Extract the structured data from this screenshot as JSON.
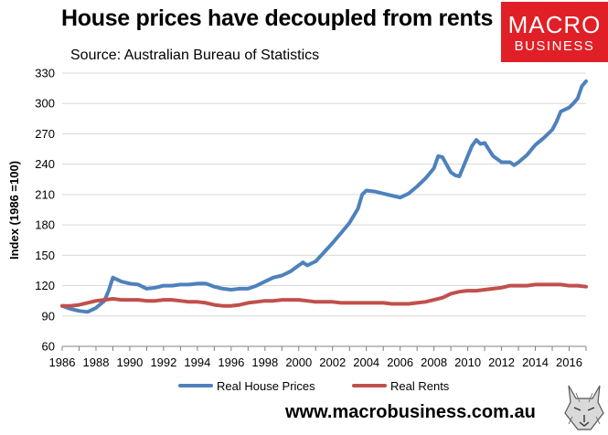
{
  "header": {
    "title": "House prices have decoupled from rents",
    "source": "Source: Australian Bureau of Statistics"
  },
  "logo": {
    "line1": "MACRO",
    "line2": "BUSINESS"
  },
  "footer": {
    "url": "www.macrobusiness.com.au"
  },
  "colors": {
    "house": "#4e81bd",
    "rents": "#c0504d",
    "brand": "#e11f26"
  },
  "chart_data": {
    "type": "line",
    "ylabel": "Index (1986 =100)",
    "xlim": [
      1986,
      2017
    ],
    "ylim": [
      60,
      330
    ],
    "yticks": [
      60,
      90,
      120,
      150,
      180,
      210,
      240,
      270,
      300,
      330
    ],
    "xticks": [
      1986,
      1988,
      1990,
      1992,
      1994,
      1996,
      1998,
      2000,
      2002,
      2004,
      2006,
      2008,
      2010,
      2012,
      2014,
      2016
    ],
    "grid": "horizontal",
    "legend": "bottom",
    "series": [
      {
        "name": "Real House Prices",
        "color": "#4e81bd",
        "x": [
          1986.0,
          1986.5,
          1987.0,
          1987.5,
          1988.0,
          1988.5,
          1988.75,
          1989.0,
          1989.5,
          1990.0,
          1990.5,
          1991.0,
          1991.5,
          1992.0,
          1992.5,
          1993.0,
          1993.5,
          1994.0,
          1994.5,
          1995.0,
          1995.5,
          1996.0,
          1996.5,
          1997.0,
          1997.5,
          1998.0,
          1998.5,
          1999.0,
          1999.5,
          2000.0,
          2000.25,
          2000.5,
          2001.0,
          2001.5,
          2002.0,
          2002.5,
          2003.0,
          2003.5,
          2003.75,
          2004.0,
          2004.5,
          2005.0,
          2005.5,
          2006.0,
          2006.5,
          2007.0,
          2007.5,
          2008.0,
          2008.25,
          2008.5,
          2009.0,
          2009.25,
          2009.5,
          2010.0,
          2010.25,
          2010.5,
          2010.75,
          2011.0,
          2011.5,
          2012.0,
          2012.5,
          2012.75,
          2013.0,
          2013.5,
          2014.0,
          2014.5,
          2015.0,
          2015.25,
          2015.5,
          2016.0,
          2016.25,
          2016.5,
          2016.75,
          2017.0
        ],
        "y": [
          100,
          97,
          95,
          94,
          98,
          105,
          115,
          128,
          124,
          122,
          121,
          117,
          118,
          120,
          120,
          121,
          121,
          122,
          122,
          119,
          117,
          116,
          117,
          117,
          120,
          124,
          128,
          130,
          134,
          140,
          143,
          140,
          144,
          153,
          162,
          172,
          182,
          196,
          210,
          214,
          213,
          211,
          209,
          207,
          211,
          218,
          226,
          236,
          248,
          247,
          232,
          229,
          228,
          248,
          258,
          264,
          260,
          261,
          248,
          242,
          242,
          239,
          242,
          249,
          259,
          266,
          274,
          282,
          292,
          296,
          300,
          305,
          317,
          322
        ]
      },
      {
        "name": "Real Rents",
        "color": "#c0504d",
        "x": [
          1986.0,
          1986.5,
          1987.0,
          1987.5,
          1988.0,
          1988.5,
          1989.0,
          1989.5,
          1990.0,
          1990.5,
          1991.0,
          1991.5,
          1992.0,
          1992.5,
          1993.0,
          1993.5,
          1994.0,
          1994.5,
          1995.0,
          1995.5,
          1996.0,
          1996.5,
          1997.0,
          1997.5,
          1998.0,
          1998.5,
          1999.0,
          1999.5,
          2000.0,
          2000.5,
          2001.0,
          2001.5,
          2002.0,
          2002.5,
          2003.0,
          2003.5,
          2004.0,
          2004.5,
          2005.0,
          2005.5,
          2006.0,
          2006.5,
          2007.0,
          2007.5,
          2008.0,
          2008.5,
          2009.0,
          2009.5,
          2010.0,
          2010.5,
          2011.0,
          2011.5,
          2012.0,
          2012.5,
          2013.0,
          2013.5,
          2014.0,
          2014.5,
          2015.0,
          2015.5,
          2016.0,
          2016.5,
          2017.0
        ],
        "y": [
          100,
          100,
          101,
          103,
          105,
          106,
          107,
          106,
          106,
          106,
          105,
          105,
          106,
          106,
          105,
          104,
          104,
          103,
          101,
          100,
          100,
          101,
          103,
          104,
          105,
          105,
          106,
          106,
          106,
          105,
          104,
          104,
          104,
          103,
          103,
          103,
          103,
          103,
          103,
          102,
          102,
          102,
          103,
          104,
          106,
          108,
          112,
          114,
          115,
          115,
          116,
          117,
          118,
          120,
          120,
          120,
          121,
          121,
          121,
          121,
          120,
          120,
          119
        ]
      }
    ]
  }
}
